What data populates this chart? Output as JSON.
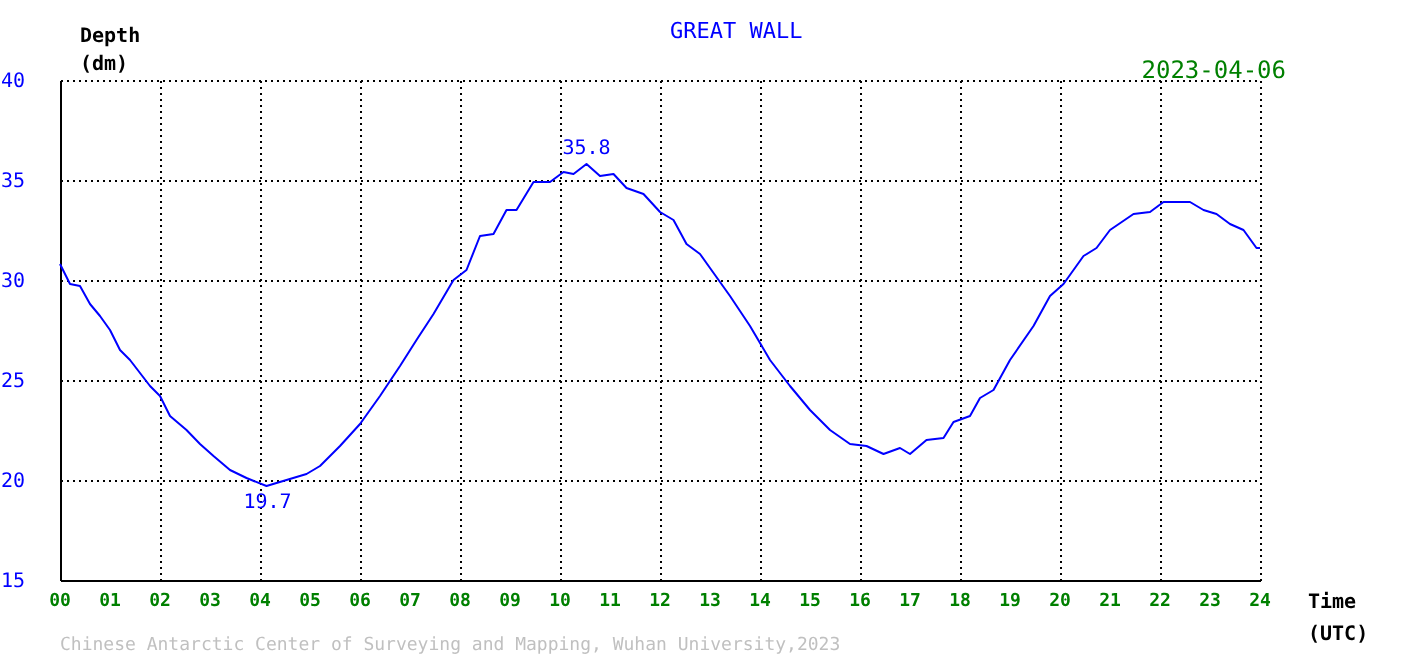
{
  "chart_data": {
    "type": "line",
    "title": "GREAT WALL",
    "xlabel": "Time\n(UTC)",
    "ylabel": "Depth\n(dm)",
    "annotations": [
      {
        "text": "35.8",
        "x": 10.53,
        "y": 35.8
      },
      {
        "text": "19.7",
        "x": 4.15,
        "y": 19.7
      },
      "2023-04-06",
      "Chinese Antarctic Center of Surveying and Mapping, Wuhan University,2023"
    ],
    "x": [
      0,
      0.2,
      0.4,
      0.6,
      0.8,
      1.0,
      1.2,
      1.4,
      1.8,
      2.0,
      2.2,
      2.53,
      2.8,
      3.07,
      3.4,
      3.73,
      4.13,
      4.53,
      4.93,
      5.2,
      5.6,
      6.0,
      6.4,
      6.8,
      7.13,
      7.47,
      7.87,
      8.13,
      8.4,
      8.67,
      8.93,
      9.13,
      9.47,
      9.8,
      10.07,
      10.27,
      10.53,
      10.8,
      11.07,
      11.33,
      11.67,
      12.0,
      12.27,
      12.53,
      12.8,
      13.0,
      13.4,
      13.8,
      14.2,
      14.6,
      15.0,
      15.4,
      15.8,
      16.13,
      16.47,
      16.8,
      17.0,
      17.33,
      17.67,
      17.87,
      18.2,
      18.4,
      18.67,
      19.0,
      19.47,
      19.8,
      20.07,
      20.47,
      20.73,
      21.0,
      21.47,
      21.8,
      22.07,
      22.6,
      22.87,
      23.13,
      23.4,
      23.67,
      23.93,
      24.0
    ],
    "series": [
      {
        "color": "#0000ff",
        "values": [
          30.8,
          29.8,
          29.7,
          28.8,
          28.2,
          27.5,
          26.5,
          26.0,
          24.7,
          24.2,
          23.2,
          22.5,
          21.8,
          21.2,
          20.5,
          20.1,
          19.7,
          20.0,
          20.3,
          20.7,
          21.7,
          22.8,
          24.2,
          25.7,
          27.0,
          28.3,
          30.0,
          30.5,
          32.2,
          32.3,
          33.5,
          33.5,
          34.9,
          34.9,
          35.4,
          35.3,
          35.8,
          35.2,
          35.3,
          34.6,
          34.3,
          33.4,
          33.0,
          31.8,
          31.3,
          30.6,
          29.2,
          27.7,
          26.0,
          24.7,
          23.5,
          22.5,
          21.8,
          21.7,
          21.3,
          21.6,
          21.3,
          22.0,
          22.1,
          22.9,
          23.2,
          24.1,
          24.5,
          26.0,
          27.7,
          29.2,
          29.8,
          31.2,
          31.6,
          32.5,
          33.3,
          33.4,
          33.9,
          33.9,
          33.5,
          33.3,
          32.8,
          32.5,
          31.6,
          31.6
        ]
      }
    ],
    "xlim": [
      0,
      24
    ],
    "ylim": [
      15,
      40
    ],
    "xticks": [
      {
        "value": 0,
        "label": "00"
      },
      {
        "value": 1,
        "label": "01"
      },
      {
        "value": 2,
        "label": "02"
      },
      {
        "value": 3,
        "label": "03"
      },
      {
        "value": 4,
        "label": "04"
      },
      {
        "value": 5,
        "label": "05"
      },
      {
        "value": 6,
        "label": "06"
      },
      {
        "value": 7,
        "label": "07"
      },
      {
        "value": 8,
        "label": "08"
      },
      {
        "value": 9,
        "label": "09"
      },
      10,
      11,
      12,
      13,
      14,
      15,
      16,
      17,
      18,
      19,
      20,
      21,
      22,
      23,
      24
    ],
    "yticks": [
      15,
      20,
      25,
      30,
      35,
      40
    ],
    "grid": true,
    "marker": "none",
    "line_style": "solid"
  }
}
